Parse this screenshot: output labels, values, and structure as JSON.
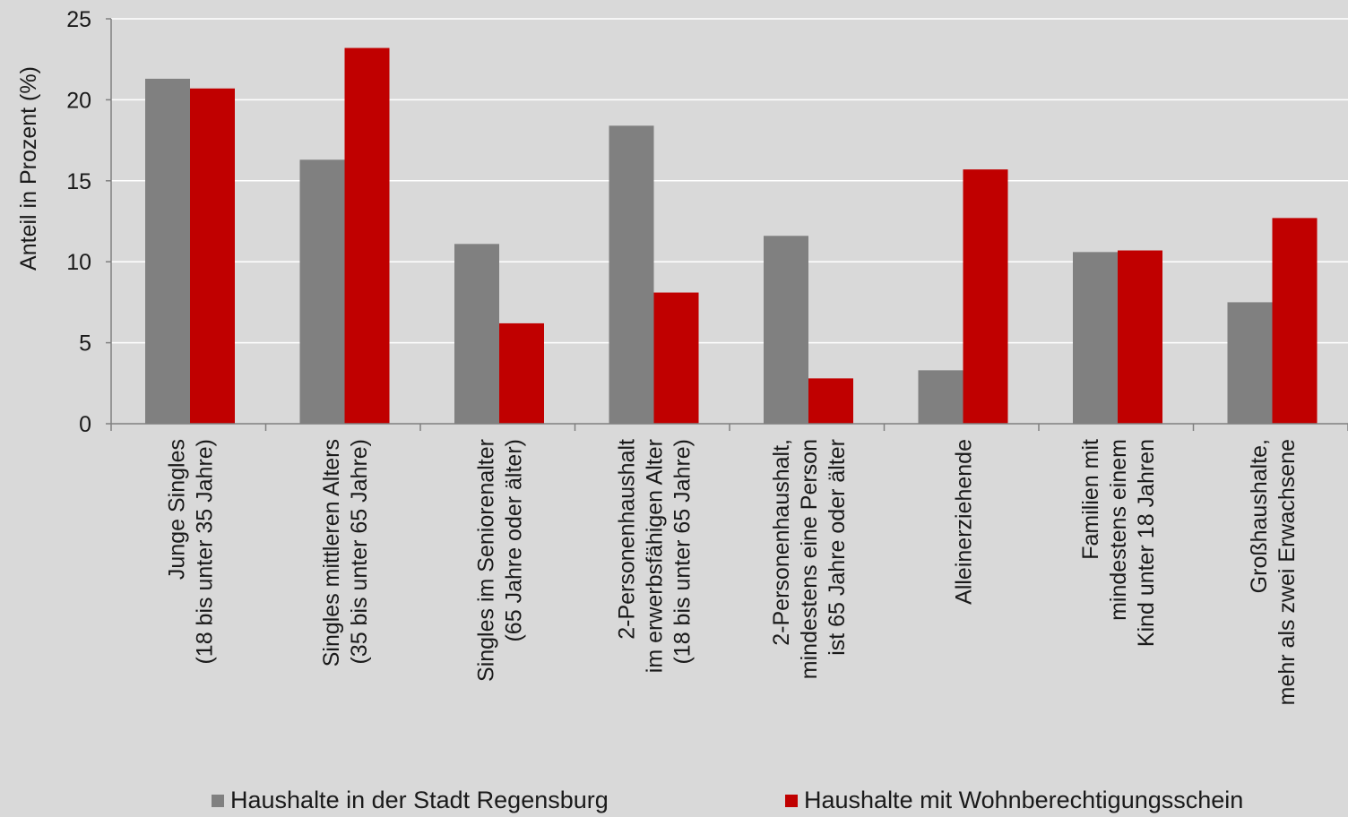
{
  "chart_data": {
    "type": "bar",
    "ylabel": "Anteil in Prozent (%)",
    "ylim": [
      0,
      25
    ],
    "yticks": [
      "0",
      "5",
      "10",
      "15",
      "20",
      "25"
    ],
    "grid": true,
    "legend_position": "bottom",
    "categories": [
      [
        "Junge Singles",
        "(18 bis unter 35 Jahre)"
      ],
      [
        "Singles mittleren Alters",
        "(35 bis unter 65 Jahre)"
      ],
      [
        "Singles im Seniorenalter",
        "(65 Jahre oder älter)"
      ],
      [
        "2-Personenhaushalt",
        "im erwerbsfähigen Alter",
        "(18 bis unter 65 Jahre)"
      ],
      [
        "2-Personenhaushalt,",
        "mindestens eine Person",
        "ist 65 Jahre oder älter"
      ],
      [
        "Alleinerziehende"
      ],
      [
        "Familien mit",
        "mindestens einem",
        "Kind unter 18 Jahren"
      ],
      [
        "Großhaushalte,",
        "mehr als zwei Erwachsene"
      ]
    ],
    "series": [
      {
        "name": "Haushalte in der Stadt Regensburg",
        "color": "#808080",
        "values": [
          21.3,
          16.3,
          11.1,
          18.4,
          11.6,
          3.3,
          10.6,
          7.5
        ]
      },
      {
        "name": "Haushalte mit Wohnberechtigungsschein",
        "color": "#c00000",
        "values": [
          20.7,
          23.2,
          6.2,
          8.1,
          2.8,
          15.7,
          10.7,
          12.7
        ]
      }
    ]
  }
}
